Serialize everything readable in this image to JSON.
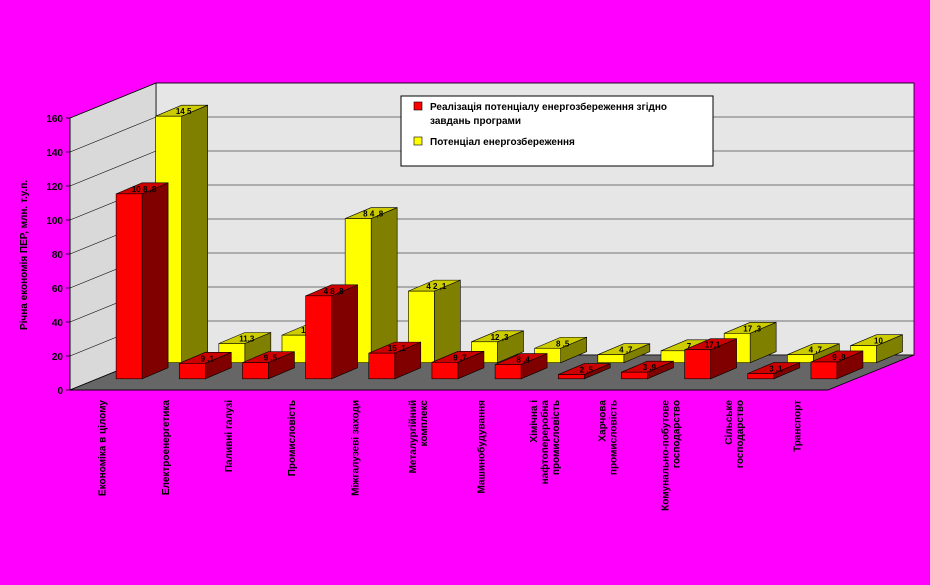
{
  "chart_data": {
    "type": "bar",
    "ylabel": "Річна економія ПЕР, млн. т.у.п.",
    "ylim": [
      0,
      160
    ],
    "yticks": [
      0,
      20,
      40,
      60,
      80,
      100,
      120,
      140,
      160
    ],
    "grid": true,
    "legend_position": "top-right",
    "categories": [
      "Економіка в цілому",
      "Електроенергетика",
      "Паливні галузі",
      "Промисловість",
      "Міжгалузеві заходи",
      "Металургійний комплекс",
      "Машинобудування",
      "Хімічна і нафтопереробна промисловість",
      "Харчова промисловість",
      "Комунально-побутове господарство",
      "Сільське господарство",
      "Транспорт"
    ],
    "series": [
      {
        "name": "Реалізація потенціалу енергозбереження згідно завдань програми",
        "color": "#FF0000",
        "values": [
          108.8,
          9.1,
          9.5,
          48.8,
          15.1,
          9.7,
          8.4,
          2.5,
          3.9,
          17.1,
          3.1,
          9.9
        ],
        "labels": [
          "10 8 ,8",
          "9 ,1",
          "9 ,5",
          "4 8 ,8",
          "15 ,1",
          "9 ,7",
          "8 ,4",
          "2 ,5",
          "3 ,9",
          "17,1",
          "3 ,1",
          "9 ,9"
        ]
      },
      {
        "name": "Потенціал енергозбереження",
        "color": "#FFFF00",
        "values": [
          145,
          11.3,
          16.2,
          84.8,
          42.1,
          12.3,
          8.5,
          4.7,
          7,
          17.3,
          4.7,
          10
        ],
        "labels": [
          "14 5",
          "11,3",
          "16 ,2",
          "8 4 ,8",
          "4 2 ,1",
          "12 ,3",
          "8 ,5",
          "4 ,7",
          "7",
          "17 ,3",
          "4 ,7",
          "10"
        ]
      }
    ],
    "legend": [
      {
        "line1": "Реалізація потенціалу енергозбереження згідно",
        "line2": "завдань програми"
      },
      {
        "line1": "Потенціал енергозбереження",
        "line2": ""
      }
    ]
  }
}
